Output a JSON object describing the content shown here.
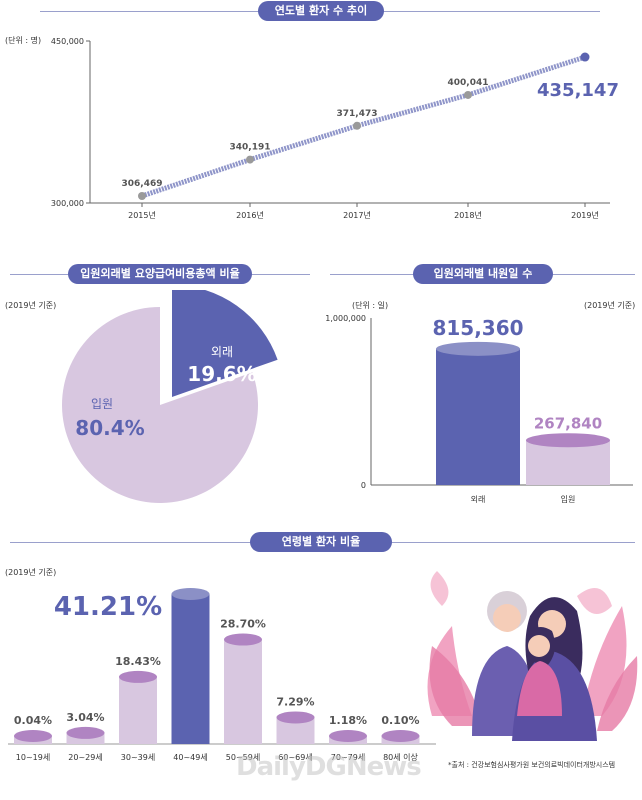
{
  "colors": {
    "accent": "#5b63b0",
    "lavender": "#d8c7e0",
    "purple": "#b084c2",
    "dark_purple": "#a45aa8",
    "grey": "#9a9a9a"
  },
  "sections": {
    "trend_title": "연도별 환자 수 추이",
    "ratio_title": "입원외래별 요양급여비용총액 비율",
    "days_title": "입원외래별 내원일 수",
    "age_title": "연령별 환자 비율"
  },
  "notes": {
    "unit_person": "(단위 : 명)",
    "unit_day": "(단위 : 일)",
    "basis_2019_a": "(2019년 기준)",
    "basis_2019_b": "(2019년 기준)",
    "basis_2019_c": "(2019년 기준)",
    "source": "*출처 : 건강보험심사평가원 보건의료빅데이터개방시스템",
    "watermark": "DailyDGNews"
  },
  "chart_data": [
    {
      "type": "line",
      "title": "연도별 환자 수 추이",
      "categories": [
        "2015년",
        "2016년",
        "2017년",
        "2018년",
        "2019년"
      ],
      "values": [
        306469,
        340191,
        371473,
        400041,
        435147
      ],
      "labels": [
        "306,469",
        "340,191",
        "371,473",
        "400,041",
        "435,147"
      ],
      "ytick_labels": [
        "450,000",
        "300,000"
      ],
      "ylim": [
        300000,
        450000
      ],
      "ylabel": "(단위 : 명)"
    },
    {
      "type": "pie",
      "title": "입원외래별 요양급여비용총액 비율",
      "slices": [
        {
          "name": "외래",
          "value": 19.6,
          "label": "19.6%"
        },
        {
          "name": "입원",
          "value": 80.4,
          "label": "80.4%"
        }
      ]
    },
    {
      "type": "bar",
      "title": "입원외래별 내원일 수",
      "categories": [
        "외래",
        "입원"
      ],
      "values": [
        815360,
        267840
      ],
      "labels": [
        "815,360",
        "267,840"
      ],
      "ytick_labels": [
        "1,000,000",
        "0"
      ],
      "ylim": [
        0,
        1000000
      ]
    },
    {
      "type": "bar",
      "title": "연령별 환자 비율",
      "categories": [
        "10~19세",
        "20~29세",
        "30~39세",
        "40~49세",
        "50~59세",
        "60~69세",
        "70~79세",
        "80세 이상"
      ],
      "values": [
        0.04,
        3.04,
        18.43,
        41.21,
        28.7,
        7.29,
        1.18,
        0.1
      ],
      "labels": [
        "0.04%",
        "3.04%",
        "18.43%",
        "41.21%",
        "28.70%",
        "7.29%",
        "1.18%",
        "0.10%"
      ],
      "ylim": [
        0,
        41.21
      ]
    }
  ]
}
